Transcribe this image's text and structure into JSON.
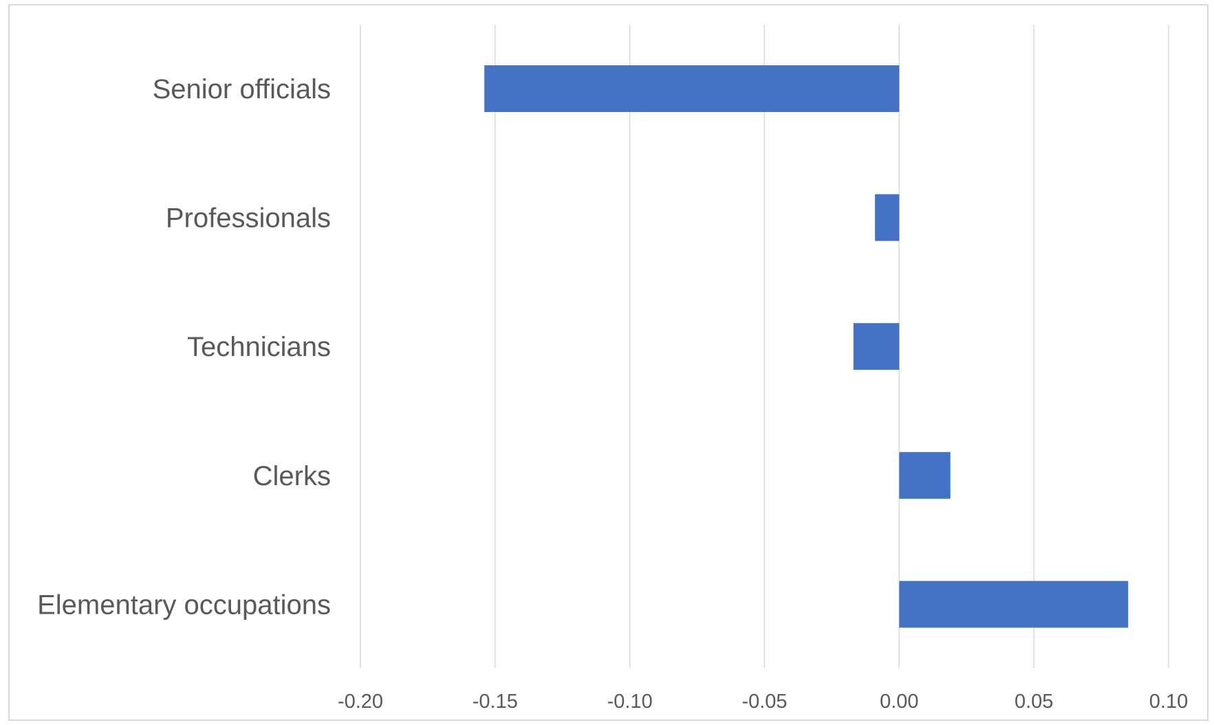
{
  "chart_data": {
    "type": "bar",
    "orientation": "horizontal",
    "categories": [
      "Senior officials",
      "Professionals",
      "Technicians",
      "Clerks",
      "Elementary occupations"
    ],
    "values": [
      -0.154,
      -0.009,
      -0.017,
      0.019,
      0.085
    ],
    "xlim": [
      -0.2,
      0.1
    ],
    "xticks": [
      -0.2,
      -0.15,
      -0.1,
      -0.05,
      0.0,
      0.05,
      0.1
    ],
    "xtick_labels": [
      "-0.20",
      "-0.15",
      "-0.10",
      "-0.05",
      "0.00",
      "0.05",
      "0.10"
    ],
    "grid": "vertical",
    "legend": "none",
    "bar_color": "#4472c4"
  }
}
